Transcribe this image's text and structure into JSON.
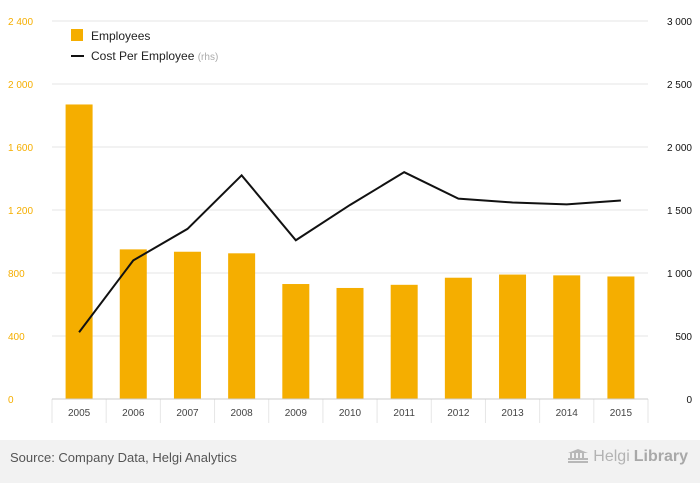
{
  "chart_data": {
    "type": "bar",
    "categories": [
      "2005",
      "2006",
      "2007",
      "2008",
      "2009",
      "2010",
      "2011",
      "2012",
      "2013",
      "2014",
      "2015"
    ],
    "series": [
      {
        "name": "Employees",
        "type": "bar",
        "axis": "left",
        "values": [
          1870,
          950,
          935,
          925,
          730,
          705,
          725,
          770,
          790,
          785,
          778
        ]
      },
      {
        "name": "Cost Per Employee",
        "name_suffix": "(rhs)",
        "type": "line",
        "axis": "right",
        "values": [
          530,
          1100,
          1350,
          1775,
          1260,
          1540,
          1800,
          1590,
          1560,
          1545,
          1575
        ]
      }
    ],
    "left_axis": {
      "min": 0,
      "max": 2400,
      "ticks": [
        0,
        400,
        800,
        1200,
        1600,
        2000,
        2400
      ],
      "tick_labels": [
        "0",
        "400",
        "800",
        "1 200",
        "1 600",
        "2 000",
        "2 400"
      ]
    },
    "right_axis": {
      "min": 0,
      "max": 3000,
      "ticks": [
        0,
        500,
        1000,
        1500,
        2000,
        2500,
        3000
      ],
      "tick_labels": [
        "0",
        "500",
        "1 000",
        "1 500",
        "2 000",
        "2 500",
        "3 000"
      ]
    },
    "grid": true,
    "legend_position": "top-left",
    "colors": {
      "bar": "#f5ae00",
      "line": "#111111",
      "left_tick": "#f5ae00",
      "right_tick": "#111111",
      "grid": "#e6e6e6"
    }
  },
  "footer": {
    "source": "Source: Company Data, Helgi Analytics",
    "brand_light": "Helgi",
    "brand_bold": "Library"
  }
}
